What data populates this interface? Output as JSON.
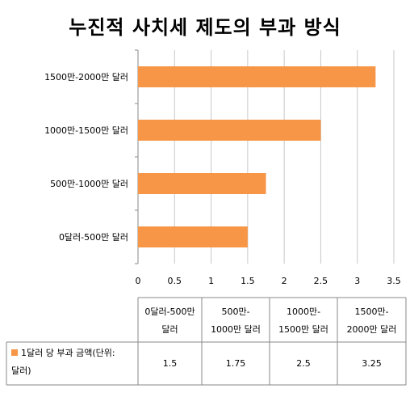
{
  "chart_data": {
    "type": "bar",
    "orientation": "horizontal",
    "title": "누진적 사치세  제도의 부과 방식",
    "categories": [
      "0달러-500만 달러",
      "500만-1000만 달러",
      "1000만-1500만 달러",
      "1500만-2000만 달러"
    ],
    "table_headers": [
      [
        "0달러-500만",
        "달러"
      ],
      [
        "500만-",
        "1000만 달러"
      ],
      [
        "1000만-",
        "1500만 달러"
      ],
      [
        "1500만-",
        "2000만 달러"
      ]
    ],
    "series": [
      {
        "name": "1달러 당 부과 금액(단위: 달러)",
        "name_lines": [
          "1달러 당 부과 금액(단위:",
          "달러)"
        ],
        "values": [
          1.5,
          1.75,
          2.5,
          3.25
        ],
        "value_labels": [
          "1.5",
          "1.75",
          "2.5",
          "3.25"
        ],
        "color": "#F79646"
      }
    ],
    "xlim": [
      0,
      3.5
    ],
    "xticks": [
      0,
      0.5,
      1,
      1.5,
      2,
      2.5,
      3,
      3.5
    ],
    "xtick_labels": [
      "0",
      "0.5",
      "1",
      "1.5",
      "2",
      "2.5",
      "3",
      "3.5"
    ],
    "grid": true,
    "legend": "data-table"
  }
}
